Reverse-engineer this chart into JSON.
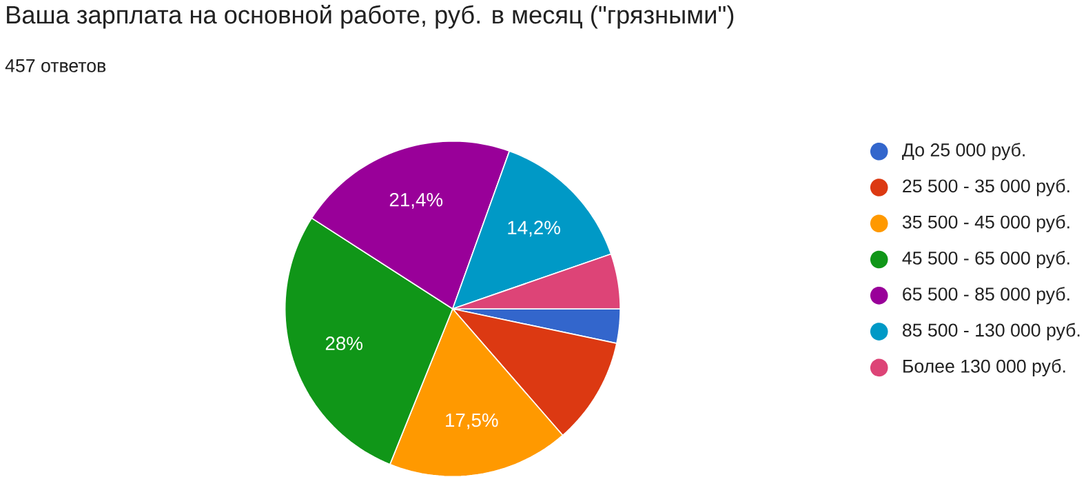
{
  "chart_data": {
    "type": "pie",
    "title": "Ваша зарплата на основной работе, руб. в месяц (\"грязными\")",
    "subtitle": "457 ответов",
    "categories": [
      "До 25 000 руб.",
      "25 500 - 35 000 руб.",
      "35 500 - 45 000 руб.",
      "45 500 - 65 000 руб.",
      "65 500 - 85 000 руб.",
      "85 500 - 130 000 руб.",
      "Более 130 000 руб."
    ],
    "values": [
      3.3,
      10.3,
      17.5,
      28,
      21.4,
      14.2,
      5.3
    ],
    "value_labels": [
      null,
      null,
      "17,5%",
      "28%",
      "21,4%",
      "14,2%",
      null
    ],
    "colors": [
      "#3366cc",
      "#dc3912",
      "#ff9900",
      "#109618",
      "#990099",
      "#0099c6",
      "#dd4477"
    ],
    "legend": "right"
  }
}
